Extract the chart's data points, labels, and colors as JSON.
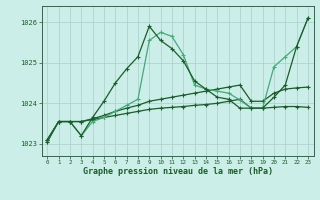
{
  "title": "Graphe pression niveau de la mer (hPa)",
  "background_color": "#cceee8",
  "grid_color": "#aacccc",
  "line_color_dark": "#1a5c2a",
  "line_color_light": "#44aa77",
  "xlim": [
    -0.5,
    23.5
  ],
  "ylim": [
    1022.7,
    1026.4
  ],
  "yticks": [
    1023,
    1024,
    1025,
    1026
  ],
  "xticks": [
    0,
    1,
    2,
    3,
    4,
    5,
    6,
    7,
    8,
    9,
    10,
    11,
    12,
    13,
    14,
    15,
    16,
    17,
    18,
    19,
    20,
    21,
    22,
    23
  ],
  "series": [
    {
      "x": [
        0,
        1,
        2,
        3,
        4,
        5,
        6,
        7,
        8,
        9,
        10,
        11,
        12,
        13,
        14,
        15,
        16,
        17,
        18,
        19,
        20,
        21,
        22,
        23
      ],
      "y": [
        1023.1,
        1023.55,
        1023.55,
        1023.55,
        1023.6,
        1023.65,
        1023.7,
        1023.75,
        1023.8,
        1023.85,
        1023.88,
        1023.9,
        1023.92,
        1023.95,
        1023.97,
        1024.0,
        1024.05,
        1024.1,
        1023.88,
        1023.88,
        1023.9,
        1023.92,
        1023.92,
        1023.9
      ],
      "color": "#1a5c2a",
      "lw": 0.9
    },
    {
      "x": [
        0,
        1,
        2,
        3,
        4,
        5,
        6,
        7,
        8,
        9,
        10,
        11,
        12,
        13,
        14,
        15,
        16,
        17,
        18,
        19,
        20,
        21,
        22,
        23
      ],
      "y": [
        1023.1,
        1023.55,
        1023.55,
        1023.55,
        1023.62,
        1023.7,
        1023.8,
        1023.88,
        1023.95,
        1024.05,
        1024.1,
        1024.15,
        1024.2,
        1024.25,
        1024.3,
        1024.35,
        1024.4,
        1024.45,
        1024.05,
        1024.05,
        1024.25,
        1024.35,
        1024.38,
        1024.4
      ],
      "color": "#1a5c2a",
      "lw": 0.9
    },
    {
      "x": [
        0,
        1,
        2,
        3,
        4,
        5,
        6,
        7,
        8,
        9,
        10,
        11,
        12,
        13,
        14,
        15,
        16,
        17,
        18,
        19,
        20,
        21,
        22,
        23
      ],
      "y": [
        1023.05,
        1023.55,
        1023.55,
        1023.2,
        1023.55,
        1023.65,
        1023.8,
        1023.95,
        1024.1,
        1025.55,
        1025.75,
        1025.65,
        1025.2,
        1024.45,
        1024.35,
        1024.3,
        1024.25,
        1024.08,
        1023.88,
        1023.88,
        1024.9,
        1025.15,
        1025.4,
        1026.1
      ],
      "color": "#44aa77",
      "lw": 0.9
    },
    {
      "x": [
        0,
        1,
        2,
        3,
        4,
        5,
        6,
        7,
        8,
        9,
        10,
        11,
        12,
        13,
        14,
        15,
        16,
        17,
        18,
        19,
        20,
        21,
        22,
        23
      ],
      "y": [
        1023.05,
        1023.55,
        1023.55,
        1023.2,
        1023.65,
        1024.05,
        1024.5,
        1024.85,
        1025.15,
        1025.9,
        1025.55,
        1025.35,
        1025.05,
        1024.55,
        1024.35,
        1024.15,
        1024.1,
        1023.88,
        1023.88,
        1023.88,
        1024.15,
        1024.45,
        1025.4,
        1026.1
      ],
      "color": "#1a5c2a",
      "lw": 0.9
    }
  ]
}
